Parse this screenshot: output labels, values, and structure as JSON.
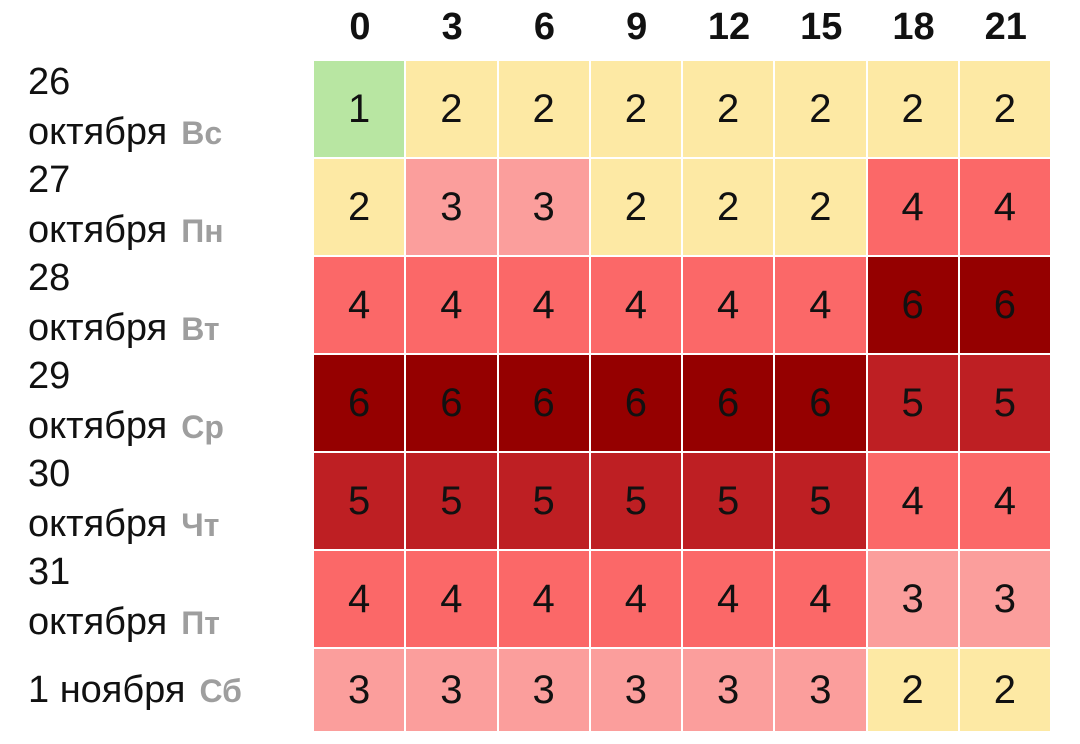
{
  "chart_data": {
    "type": "heatmap",
    "x": [
      "0",
      "3",
      "6",
      "9",
      "12",
      "15",
      "18",
      "21"
    ],
    "rows": [
      {
        "date": "26 октября",
        "weekday": "Вс",
        "values": [
          1,
          2,
          2,
          2,
          2,
          2,
          2,
          2
        ]
      },
      {
        "date": "27 октября",
        "weekday": "Пн",
        "values": [
          2,
          3,
          3,
          2,
          2,
          2,
          4,
          4
        ]
      },
      {
        "date": "28 октября",
        "weekday": "Вт",
        "values": [
          4,
          4,
          4,
          4,
          4,
          4,
          6,
          6
        ]
      },
      {
        "date": "29 октября",
        "weekday": "Ср",
        "values": [
          6,
          6,
          6,
          6,
          6,
          6,
          5,
          5
        ]
      },
      {
        "date": "30 октября",
        "weekday": "Чт",
        "values": [
          5,
          5,
          5,
          5,
          5,
          5,
          4,
          4
        ]
      },
      {
        "date": "31 октября",
        "weekday": "Пт",
        "values": [
          4,
          4,
          4,
          4,
          4,
          4,
          3,
          3
        ]
      },
      {
        "date": "1 ноября",
        "weekday": "Сб",
        "values": [
          3,
          3,
          3,
          3,
          3,
          3,
          2,
          2
        ]
      }
    ],
    "colors": {
      "1": "#b8e6a2",
      "2": "#fde9a4",
      "3": "#fb9e9c",
      "4": "#fb6868",
      "5": "#be1f23",
      "6": "#950000"
    }
  }
}
